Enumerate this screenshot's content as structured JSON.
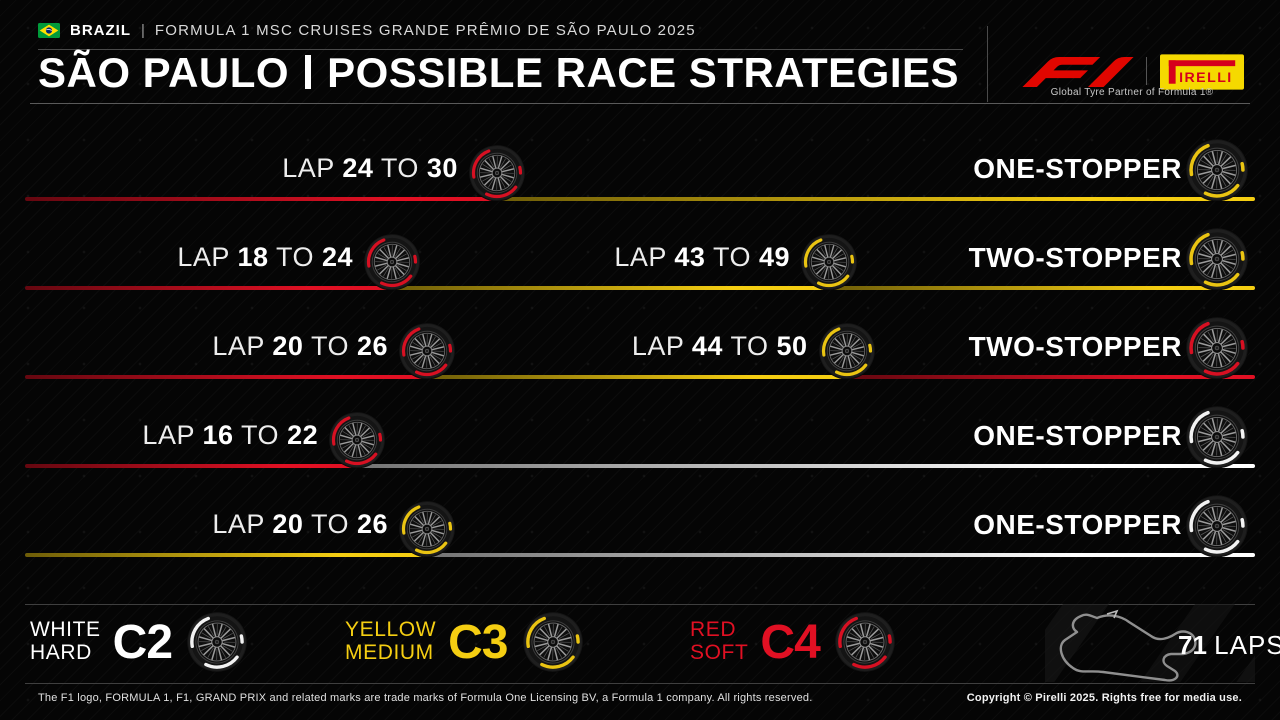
{
  "header": {
    "country": "BRAZIL",
    "pipe": "|",
    "event": "FORMULA 1 MSC CRUISES GRANDE PRÊMIO DE SÃO PAULO 2025",
    "title_left": "SÃO PAULO",
    "title_right": "POSSIBLE RACE STRATEGIES",
    "partner_caption": "Global Tyre Partner of Formula 1®",
    "pirelli_logo_text": "PIRELLI",
    "f1_logo_name": "F1"
  },
  "colors": {
    "f1_red": "#e10600",
    "pirelli_yellow": "#f5d900",
    "background": "#050505",
    "text": "#ffffff"
  },
  "compounds": {
    "soft": {
      "hex": "#e11023",
      "name": "SOFT"
    },
    "medium": {
      "hex": "#f5ce12",
      "name": "MEDIUM"
    },
    "hard": {
      "hex": "#ffffff",
      "name": "HARD"
    }
  },
  "labels": {
    "lap": "LAP",
    "to": "TO"
  },
  "strategies": [
    {
      "label": "ONE-STOPPER",
      "stints": [
        {
          "compound": "soft",
          "pit_from": 24,
          "pit_to": 30
        },
        {
          "compound": "medium"
        }
      ]
    },
    {
      "label": "TWO-STOPPER",
      "stints": [
        {
          "compound": "soft",
          "pit_from": 18,
          "pit_to": 24
        },
        {
          "compound": "medium",
          "pit_from": 43,
          "pit_to": 49
        },
        {
          "compound": "medium"
        }
      ]
    },
    {
      "label": "TWO-STOPPER",
      "stints": [
        {
          "compound": "soft",
          "pit_from": 20,
          "pit_to": 26
        },
        {
          "compound": "medium",
          "pit_from": 44,
          "pit_to": 50
        },
        {
          "compound": "soft"
        }
      ]
    },
    {
      "label": "ONE-STOPPER",
      "stints": [
        {
          "compound": "soft",
          "pit_from": 16,
          "pit_to": 22
        },
        {
          "compound": "hard"
        }
      ]
    },
    {
      "label": "ONE-STOPPER",
      "stints": [
        {
          "compound": "medium",
          "pit_from": 20,
          "pit_to": 26
        },
        {
          "compound": "hard"
        }
      ]
    }
  ],
  "legend": [
    {
      "color_word": "WHITE",
      "compound_word": "HARD",
      "code": "C2",
      "compound": "hard"
    },
    {
      "color_word": "YELLOW",
      "compound_word": "MEDIUM",
      "code": "C3",
      "compound": "medium"
    },
    {
      "color_word": "RED",
      "compound_word": "SOFT",
      "code": "C4",
      "compound": "soft"
    }
  ],
  "race": {
    "total_laps": 71,
    "laps_number": "71",
    "laps_word": "LAPS"
  },
  "footer": {
    "left": "The F1 logo, FORMULA 1, F1, GRAND PRIX and related marks are trade marks of Formula One Licensing BV, a Formula 1 company. All rights reserved.",
    "right": "Copyright © Pirelli 2025. Rights free for media use."
  }
}
